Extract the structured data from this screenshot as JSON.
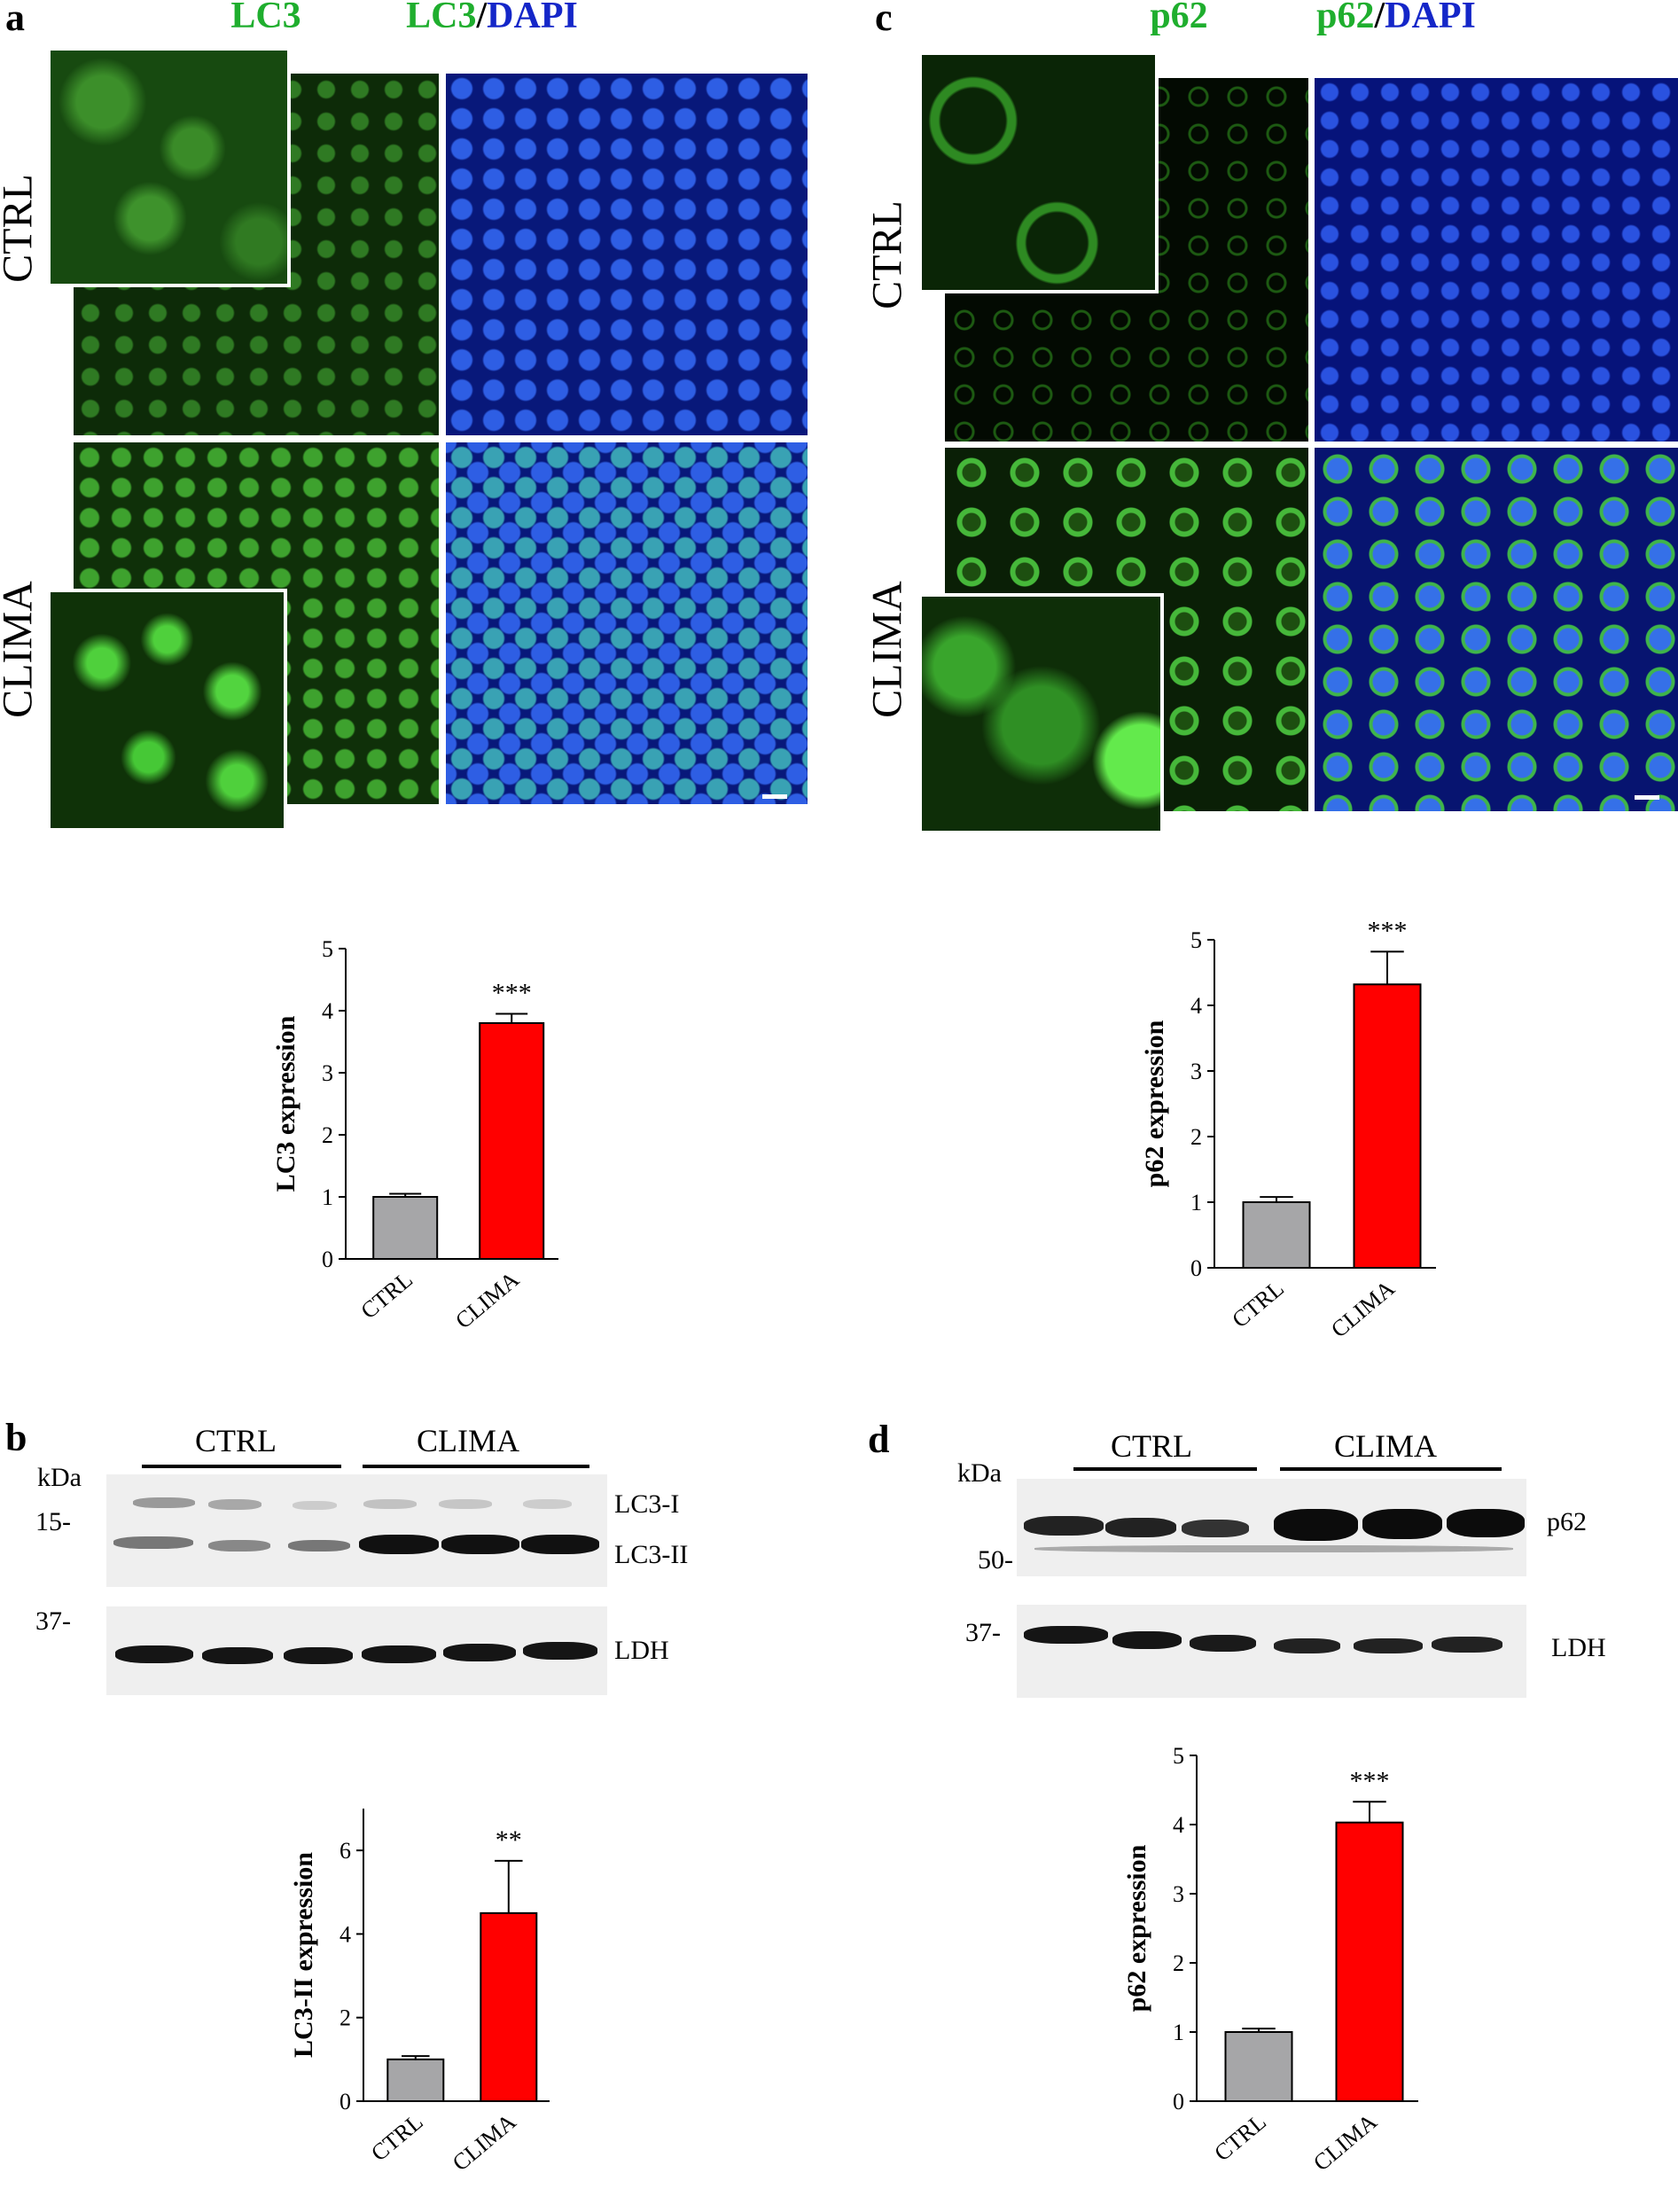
{
  "panels": {
    "a": {
      "letter": "a",
      "col_heads": [
        {
          "green": "LC3",
          "sep": "",
          "blue": ""
        },
        {
          "green": "LC3",
          "sep": "/",
          "blue": "DAPI"
        }
      ],
      "rows": [
        "CTRL",
        "CLIMA"
      ]
    },
    "c": {
      "letter": "c",
      "col_heads": [
        {
          "green": "p62",
          "sep": "",
          "blue": ""
        },
        {
          "green": "p62",
          "sep": "/",
          "blue": "DAPI"
        }
      ],
      "rows": [
        "CTRL",
        "CLIMA"
      ]
    },
    "b": {
      "letter": "b",
      "groups": [
        "CTRL",
        "CLIMA"
      ],
      "kda_label": "kDa",
      "markers": [
        "15-",
        "37-"
      ],
      "bands": [
        "LC3-I",
        "LC3-II",
        "LDH"
      ]
    },
    "d": {
      "letter": "d",
      "groups": [
        "CTRL",
        "CLIMA"
      ],
      "kda_label": "kDa",
      "markers": [
        "50-",
        "37-"
      ],
      "bands": [
        "p62",
        "LDH"
      ]
    }
  },
  "colors": {
    "ctrl_bar": "#a6a6a8",
    "clima_bar": "#ff0000",
    "stain_green": "#1fae2e",
    "stain_blue": "#1426c8"
  },
  "chart_data": [
    {
      "id": "a",
      "type": "bar",
      "categories": [
        "CTRL",
        "CLIMA"
      ],
      "values": [
        1.0,
        3.8
      ],
      "errors": [
        0.05,
        0.15
      ],
      "significance": [
        "",
        "***"
      ],
      "ylabel": "LC3 expression",
      "ylim": [
        0,
        5
      ],
      "yticks": [
        0,
        1,
        2,
        3,
        4,
        5
      ]
    },
    {
      "id": "c",
      "type": "bar",
      "categories": [
        "CTRL",
        "CLIMA"
      ],
      "values": [
        1.0,
        4.32
      ],
      "errors": [
        0.08,
        0.5
      ],
      "significance": [
        "",
        "***"
      ],
      "ylabel": "p62 expression",
      "ylim": [
        0,
        5
      ],
      "yticks": [
        0,
        1,
        2,
        3,
        4,
        5
      ]
    },
    {
      "id": "b",
      "type": "bar",
      "categories": [
        "CTRL",
        "CLIMA"
      ],
      "values": [
        1.0,
        4.5
      ],
      "errors": [
        0.08,
        1.25
      ],
      "significance": [
        "",
        "**"
      ],
      "ylabel": "LC3-II expression",
      "ylim": [
        0,
        7
      ],
      "yticks": [
        0,
        2,
        4,
        6
      ]
    },
    {
      "id": "d",
      "type": "bar",
      "categories": [
        "CTRL",
        "CLIMA"
      ],
      "values": [
        1.0,
        4.03
      ],
      "errors": [
        0.05,
        0.3
      ],
      "significance": [
        "",
        "***"
      ],
      "ylabel": "p62 expression",
      "ylim": [
        0,
        5
      ],
      "yticks": [
        0,
        1,
        2,
        3,
        4,
        5
      ]
    }
  ]
}
